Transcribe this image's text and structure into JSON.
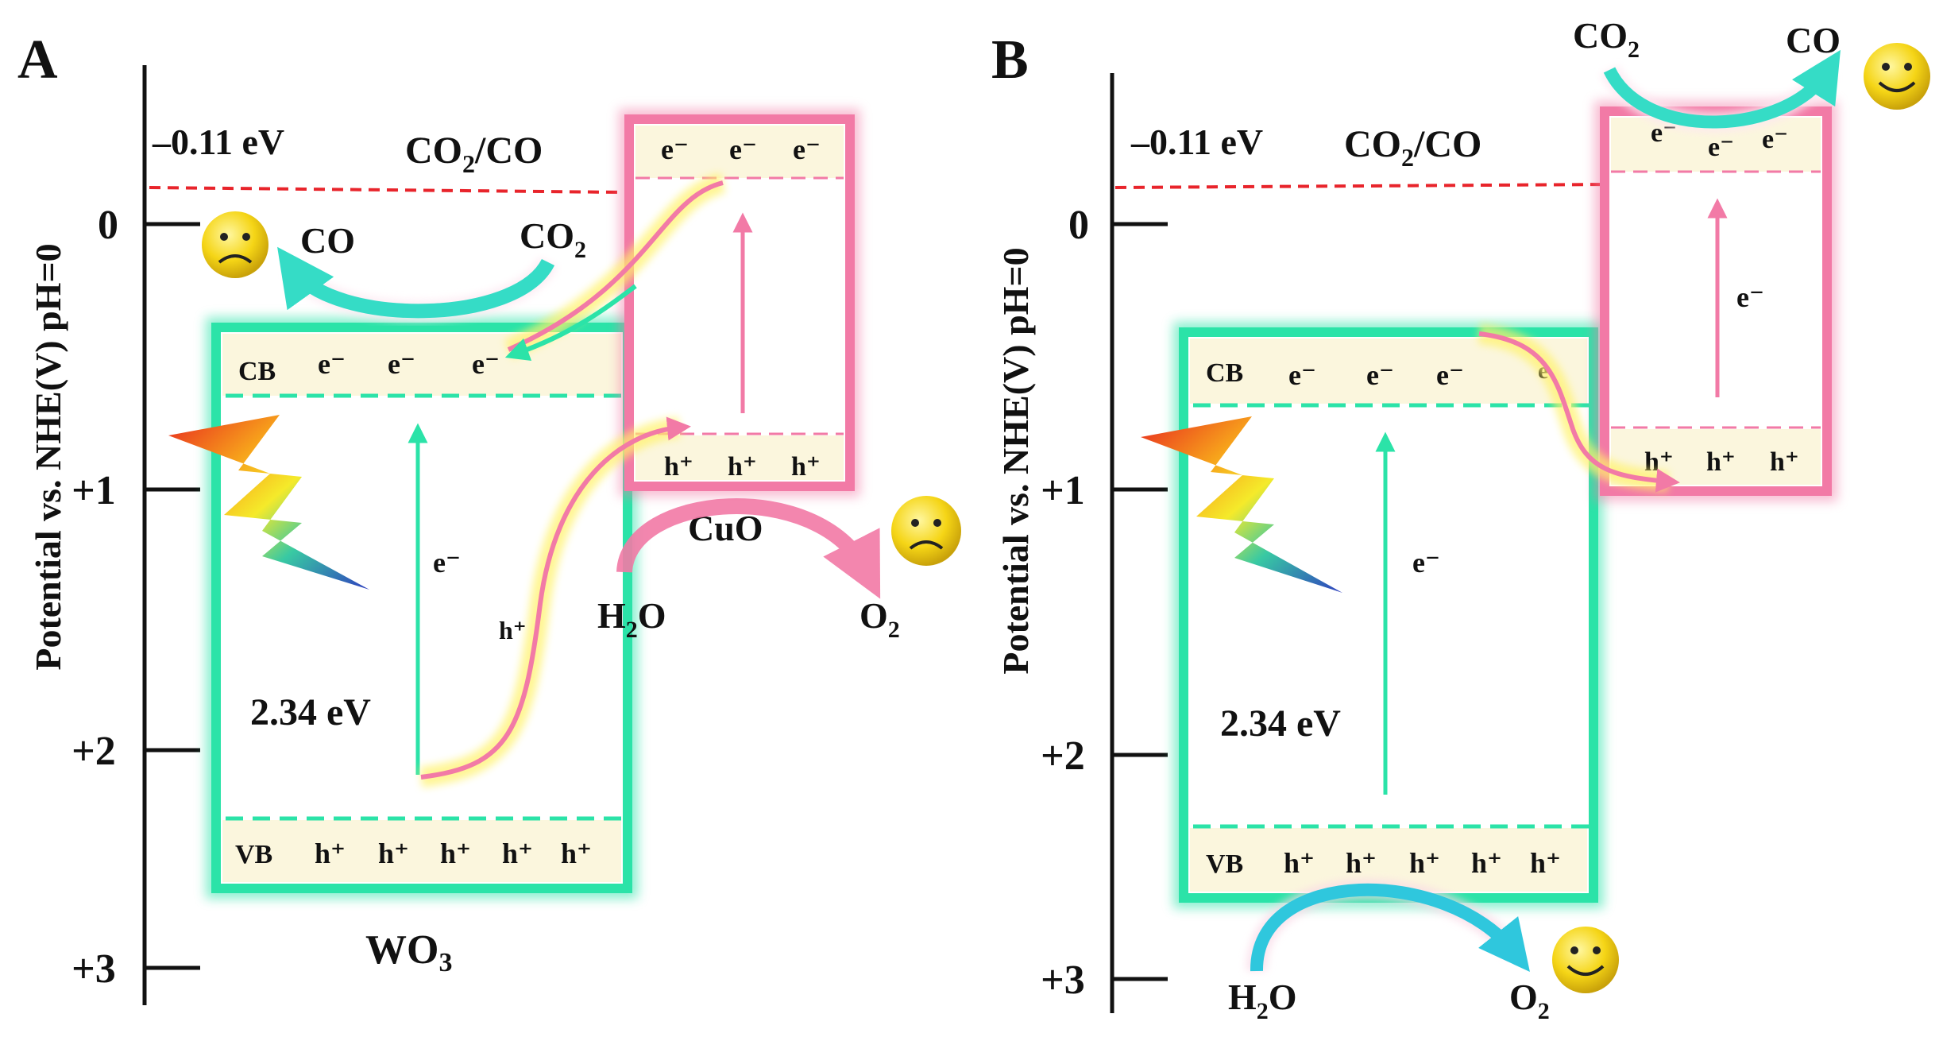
{
  "panel_a": {
    "label": "A",
    "axis_title": "Potential vs. NHE(V) pH=0",
    "ticks": [
      "0",
      "+1",
      "+2",
      "+3"
    ],
    "redox_potential": "–0.11 eV",
    "redox_couple_main": "CO",
    "redox_couple_sub": "2",
    "redox_couple_rest": "/CO",
    "co_product": "CO",
    "co2_main": "CO",
    "co2_sub": "2",
    "cb_label": "CB",
    "vb_label": "VB",
    "electron": "e⁻",
    "hole": "h⁺",
    "bandgap": "2.34 eV",
    "wo3_main": "WO",
    "wo3_sub": "3",
    "cuo_label": "CuO",
    "h2o_main": "H",
    "h2o_sub": "2",
    "h2o_rest": "O",
    "o2_main": "O",
    "o2_sub": "2",
    "co_outcome": "sad",
    "o2_outcome": "sad"
  },
  "panel_b": {
    "label": "B",
    "axis_title": "Potential vs. NHE(V) pH=0",
    "ticks": [
      "0",
      "+1",
      "+2",
      "+3"
    ],
    "redox_potential": "–0.11 eV",
    "redox_couple_main": "CO",
    "redox_couple_sub": "2",
    "redox_couple_rest": "/CO",
    "co_product": "CO",
    "co2_main": "CO",
    "co2_sub": "2",
    "cb_label": "CB",
    "vb_label": "VB",
    "electron": "e⁻",
    "electron_partial": "e",
    "hole": "h⁺",
    "bandgap": "2.34 eV",
    "h2o_main": "H",
    "h2o_sub": "2",
    "h2o_rest": "O",
    "o2_main": "O",
    "o2_sub": "2",
    "co_outcome": "happy",
    "o2_outcome": "happy"
  },
  "colors": {
    "wo3_band": "#2be3a8",
    "cuo_band": "#f27aa6",
    "redox_line": "#e8242b",
    "glow_yellow": "#fff26a",
    "arrow_cyan": "#31d6cf"
  }
}
